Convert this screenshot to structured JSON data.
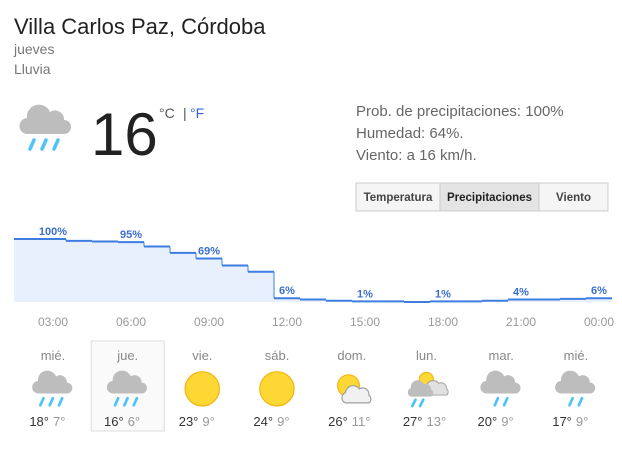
{
  "header": {
    "title": "Villa Carlos Paz, Córdoba",
    "day": "jueves",
    "condition": "Lluvia"
  },
  "current": {
    "icon": "rain",
    "temperature": "16",
    "unit_c": "°C",
    "separator": "|",
    "unit_f": "°F"
  },
  "details": [
    "Prob. de precipitaciones: 100%",
    "Humedad: 64%.",
    "Viento: a 16 km/h."
  ],
  "tabs": {
    "items": [
      "Temperatura",
      "Precipitaciones",
      "Viento"
    ],
    "active": 1
  },
  "precipitation": {
    "ylim": [
      0,
      100
    ],
    "values": [
      100,
      100,
      97,
      96,
      95,
      88,
      78,
      69,
      58,
      48,
      6,
      4,
      2,
      1,
      1,
      0,
      1,
      1,
      2,
      4,
      4,
      5,
      6
    ],
    "value_labels": [
      null,
      "100%",
      null,
      null,
      "95%",
      null,
      null,
      "69%",
      null,
      null,
      "6%",
      null,
      null,
      "1%",
      null,
      null,
      "1%",
      null,
      null,
      "4%",
      null,
      null,
      "6%"
    ],
    "times": [
      "03:00",
      "06:00",
      "09:00",
      "12:00",
      "15:00",
      "18:00",
      "21:00",
      "00:00"
    ]
  },
  "days": {
    "selected": 1,
    "items": [
      {
        "name": "mié.",
        "icon": "rain",
        "high": "18°",
        "low": "7°"
      },
      {
        "name": "jue.",
        "icon": "rain",
        "high": "16°",
        "low": "6°"
      },
      {
        "name": "vie.",
        "icon": "sun",
        "high": "23°",
        "low": "9°"
      },
      {
        "name": "sáb.",
        "icon": "sun",
        "high": "24°",
        "low": "9°"
      },
      {
        "name": "dom.",
        "icon": "partly",
        "high": "26°",
        "low": "11°"
      },
      {
        "name": "lun.",
        "icon": "storm",
        "high": "27°",
        "low": "13°"
      },
      {
        "name": "mar.",
        "icon": "showers",
        "high": "20°",
        "low": "9°"
      },
      {
        "name": "mié.",
        "icon": "showers",
        "high": "17°",
        "low": "9°"
      }
    ]
  }
}
